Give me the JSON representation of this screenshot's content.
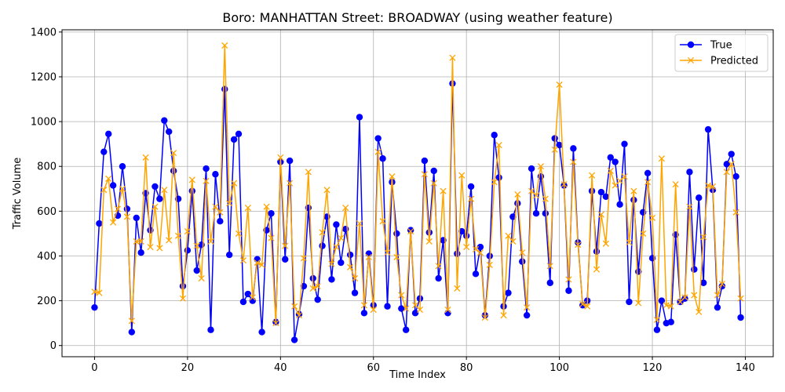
{
  "chart_data": {
    "type": "line",
    "title": "Boro: MANHATTAN Street: BROADWAY (using weather feature)",
    "xlabel": "Time Index",
    "ylabel": "Traffic Volume",
    "xlim": [
      -7,
      146
    ],
    "ylim": [
      -50,
      1410
    ],
    "x_ticks": [
      0,
      20,
      40,
      60,
      80,
      100,
      120,
      140
    ],
    "y_ticks": [
      0,
      200,
      400,
      600,
      800,
      1000,
      1200,
      1400
    ],
    "grid": true,
    "legend_position": "top-right",
    "series": [
      {
        "name": "True",
        "color": "#0000ff",
        "marker": "circle",
        "values": [
          170,
          545,
          865,
          945,
          715,
          580,
          800,
          610,
          60,
          570,
          415,
          680,
          515,
          710,
          655,
          1005,
          955,
          780,
          655,
          265,
          425,
          690,
          335,
          450,
          790,
          70,
          765,
          555,
          1145,
          405,
          920,
          945,
          195,
          230,
          200,
          385,
          60,
          515,
          590,
          105,
          820,
          385,
          825,
          25,
          140,
          265,
          615,
          300,
          205,
          445,
          575,
          295,
          540,
          370,
          520,
          405,
          235,
          1020,
          145,
          410,
          180,
          925,
          835,
          175,
          730,
          500,
          165,
          70,
          515,
          145,
          210,
          825,
          505,
          780,
          300,
          470,
          145,
          1170,
          410,
          510,
          490,
          710,
          320,
          440,
          135,
          400,
          940,
          750,
          175,
          235,
          575,
          635,
          375,
          135,
          790,
          590,
          755,
          590,
          280,
          925,
          895,
          715,
          245,
          880,
          460,
          180,
          200,
          690,
          420,
          685,
          665,
          840,
          820,
          630,
          900,
          195,
          650,
          330,
          595,
          770,
          390,
          70,
          200,
          100,
          105,
          495,
          195,
          210,
          775,
          340,
          660,
          280,
          965,
          695,
          170,
          265,
          810,
          855,
          755,
          125
        ]
      },
      {
        "name": "Predicted",
        "color": "#ffa500",
        "marker": "x",
        "values": [
          240,
          235,
          695,
          745,
          550,
          610,
          700,
          575,
          110,
          465,
          465,
          840,
          440,
          620,
          435,
          695,
          470,
          860,
          490,
          210,
          510,
          740,
          445,
          300,
          735,
          465,
          620,
          595,
          1340,
          635,
          725,
          500,
          380,
          615,
          215,
          370,
          360,
          620,
          480,
          100,
          840,
          445,
          725,
          175,
          135,
          390,
          775,
          255,
          265,
          505,
          695,
          365,
          440,
          480,
          615,
          350,
          300,
          545,
          180,
          395,
          160,
          865,
          555,
          415,
          755,
          395,
          225,
          165,
          510,
          180,
          160,
          765,
          465,
          725,
          355,
          690,
          160,
          1285,
          255,
          760,
          440,
          655,
          430,
          415,
          125,
          360,
          730,
          895,
          135,
          490,
          465,
          675,
          415,
          170,
          690,
          670,
          800,
          655,
          355,
          875,
          1165,
          720,
          295,
          820,
          450,
          185,
          175,
          760,
          340,
          585,
          455,
          780,
          715,
          735,
          755,
          460,
          690,
          190,
          500,
          730,
          570,
          115,
          835,
          180,
          175,
          720,
          195,
          215,
          620,
          225,
          150,
          485,
          715,
          710,
          225,
          275,
          775,
          810,
          595,
          210
        ]
      }
    ]
  }
}
